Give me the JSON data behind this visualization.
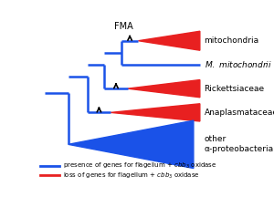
{
  "bg_color": "#ffffff",
  "blue_color": "#1a52e8",
  "red_color": "#e82020",
  "title": "FMA",
  "legend_blue_text": "presence of genes for flagellum + $cbb_3$ oxidase",
  "legend_red_text": "loss of genes for flagellum + $cbb_3$ oxidase",
  "xlim": [
    0,
    10
  ],
  "ylim": [
    0,
    10
  ],
  "y_mito": 9.0,
  "y_mmito": 7.5,
  "y_rick": 6.0,
  "y_anapl": 4.5,
  "y_other": 2.5,
  "x_root": 0.5,
  "x_n1": 1.6,
  "x_n2": 2.5,
  "x_n3": 3.3,
  "x_n4": 4.1,
  "x_n5": 4.9,
  "x_tri_end": 7.8,
  "x_label": 8.0,
  "label_fs": 6.5,
  "fma_fs": 7.0,
  "lw": 1.8,
  "arrow_lw": 1.2
}
